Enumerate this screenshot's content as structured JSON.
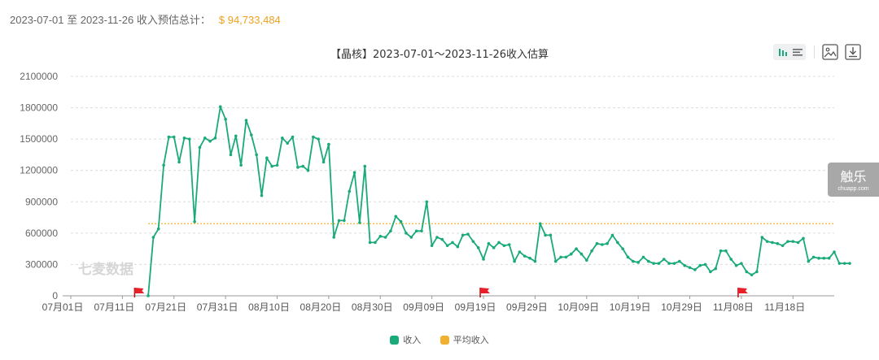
{
  "summary": {
    "label": "2023-07-01 至 2023-11-26 收入预估总计：",
    "amount": "$ 94,733,484"
  },
  "toolbar": {
    "icons": [
      "bar-chart-icon",
      "list-icon",
      "image-icon",
      "download-icon"
    ]
  },
  "watermark": {
    "chart_mark": "七麦数据",
    "brand_main": "触乐",
    "brand_sub": "chuapp.com"
  },
  "colors": {
    "revenue": "#1aaa7a",
    "average": "#f0b030",
    "flag": "#e8202a",
    "amount": "#f0a020"
  },
  "chart_data": {
    "type": "line",
    "title": "【晶核】2023-07-01～2023-11-26收入估算",
    "xlabel": "",
    "ylabel": "",
    "ylim": [
      0,
      2100000
    ],
    "y_ticks": [
      0,
      300000,
      600000,
      900000,
      1200000,
      1500000,
      1800000,
      2100000
    ],
    "x_tick_labels": [
      "07月01日",
      "07月11日",
      "07月21日",
      "07月31日",
      "08月10日",
      "08月20日",
      "08月30日",
      "09月09日",
      "09月19日",
      "09月29日",
      "10月09日",
      "10月19日",
      "10月29日",
      "11月08日",
      "11月18日"
    ],
    "x_start": "2023-07-01",
    "x_end": "2023-11-26",
    "grid": "horizontal dashed",
    "legend_position": "bottom",
    "series": [
      {
        "name": "收入",
        "start_date": "2023-07-16",
        "values": [
          0,
          560000,
          640000,
          1250000,
          1520000,
          1520000,
          1280000,
          1510000,
          1500000,
          710000,
          1420000,
          1510000,
          1480000,
          1510000,
          1810000,
          1690000,
          1350000,
          1530000,
          1250000,
          1680000,
          1540000,
          1350000,
          960000,
          1320000,
          1240000,
          1250000,
          1510000,
          1460000,
          1520000,
          1230000,
          1240000,
          1200000,
          1520000,
          1500000,
          1280000,
          1450000,
          560000,
          720000,
          720000,
          1000000,
          1180000,
          700000,
          1240000,
          510000,
          510000,
          570000,
          560000,
          620000,
          760000,
          710000,
          600000,
          560000,
          620000,
          620000,
          900000,
          480000,
          560000,
          540000,
          480000,
          510000,
          470000,
          580000,
          590000,
          520000,
          460000,
          350000,
          500000,
          460000,
          510000,
          480000,
          490000,
          330000,
          420000,
          380000,
          360000,
          330000,
          690000,
          580000,
          580000,
          330000,
          370000,
          370000,
          400000,
          450000,
          400000,
          340000,
          430000,
          500000,
          490000,
          500000,
          580000,
          510000,
          450000,
          370000,
          330000,
          320000,
          370000,
          330000,
          310000,
          310000,
          350000,
          310000,
          310000,
          330000,
          290000,
          270000,
          250000,
          290000,
          300000,
          230000,
          260000,
          430000,
          430000,
          350000,
          290000,
          310000,
          230000,
          200000,
          230000,
          560000,
          520000,
          510000,
          500000,
          480000,
          520000,
          520000,
          510000,
          550000,
          330000,
          370000,
          360000,
          360000,
          360000,
          420000,
          310000,
          310000,
          310000
        ]
      },
      {
        "name": "平均收入",
        "start_date": "2023-07-16",
        "constant": 690000
      }
    ],
    "markers": [
      {
        "date": "2023-07-14",
        "type": "flag"
      },
      {
        "date": "2023-09-19",
        "type": "flag"
      },
      {
        "date": "2023-11-08",
        "type": "flag"
      }
    ]
  }
}
